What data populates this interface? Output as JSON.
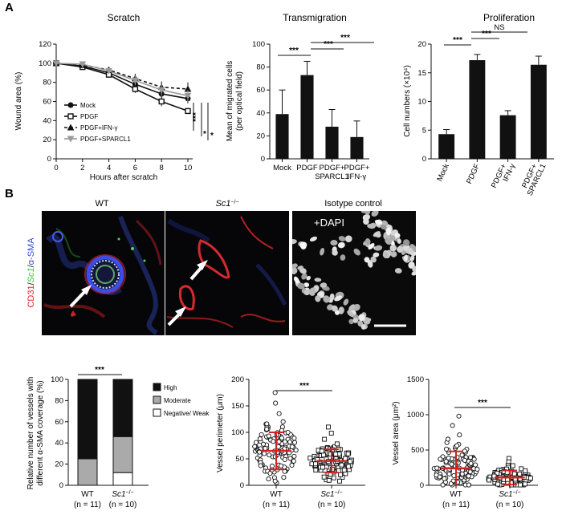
{
  "figure": {
    "panel_a": "A",
    "panel_b": "B",
    "micro_titles": [
      "WT",
      "Sc1",
      "Isotype control"
    ],
    "micro_title_sup": "−/−",
    "stain_label": {
      "cd31": "CD31",
      "sep1": "/",
      "sc1": "Sc1",
      "sep2": "/",
      "asma": "α-SMA"
    },
    "dapi_label": "+DAPI",
    "colors": {
      "cd31": "#e0262a",
      "sc1": "#32c83a",
      "asma": "#3245e6",
      "bar_black": "#111111",
      "bar_gray": "#aaaaaa",
      "error_red": "#d42020"
    }
  },
  "chart_data": [
    {
      "type": "line",
      "title": "Scratch",
      "xlabel": "Hours after scratch",
      "ylabel": "Wound area (%)",
      "xlim": [
        0,
        10
      ],
      "ylim": [
        0,
        120
      ],
      "xticks": [
        0,
        2,
        4,
        6,
        8,
        10
      ],
      "yticks": [
        0,
        20,
        40,
        60,
        80,
        100,
        120
      ],
      "x": [
        0,
        2,
        4,
        6,
        8,
        10
      ],
      "series": [
        {
          "name": "Mock",
          "values": [
            100,
            97,
            90,
            78,
            68,
            63
          ],
          "errors": [
            1,
            2,
            3,
            4,
            5,
            5
          ]
        },
        {
          "name": "PDGF",
          "values": [
            100,
            96,
            88,
            73,
            60,
            50
          ],
          "errors": [
            1,
            2,
            3,
            4,
            5,
            3
          ]
        },
        {
          "name": "PDGF+IFN-γ",
          "values": [
            100,
            98,
            93,
            84,
            75,
            73
          ],
          "errors": [
            1,
            2,
            3,
            5,
            6,
            7
          ]
        },
        {
          "name": "PDGF+SPARCL1",
          "values": [
            100,
            99,
            92,
            82,
            72,
            66
          ],
          "errors": [
            1,
            2,
            3,
            5,
            6,
            6
          ]
        }
      ],
      "legend_position": "bottom-left",
      "significance": [
        "***",
        "*",
        "*"
      ]
    },
    {
      "type": "bar",
      "title": "Transmigration",
      "ylabel": "Mean of migrated cells (per optical field)",
      "ylim": [
        0,
        100
      ],
      "yticks": [
        0,
        20,
        40,
        60,
        80,
        100
      ],
      "categories": [
        "Mock",
        "PDGF",
        "PDGF+ SPARCL1",
        "PDGF+ IFN-γ"
      ],
      "values": [
        39,
        73,
        28,
        19
      ],
      "errors": [
        21,
        12,
        15,
        14
      ],
      "significance": [
        "***",
        "***",
        "***"
      ]
    },
    {
      "type": "bar",
      "title": "Proliferation",
      "ylabel": "Cell numbers (×10⁴)",
      "ylim": [
        0,
        20
      ],
      "yticks": [
        0,
        5,
        10,
        15,
        20
      ],
      "categories": [
        "Mock",
        "PDGF",
        "PDGF+ IFN-γ",
        "PDGF+ SPARCL1"
      ],
      "values": [
        4.3,
        17.2,
        7.6,
        16.4
      ],
      "errors": [
        0.8,
        1.0,
        0.8,
        1.5
      ],
      "significance": [
        "***",
        "***",
        "NS"
      ]
    },
    {
      "type": "bar",
      "stacked": true,
      "ylabel": "Relative number of vessels with different α-SMA coverage (%)",
      "ylim": [
        0,
        100
      ],
      "yticks": [
        0,
        20,
        40,
        60,
        80,
        100
      ],
      "categories": [
        "WT",
        "Sc1−/−"
      ],
      "category_n": [
        "(n = 11)",
        "(n = 10)"
      ],
      "series": [
        {
          "name": "Negative/ Weak",
          "values": [
            0,
            12
          ],
          "color": "#ffffff"
        },
        {
          "name": "Moderate",
          "values": [
            25,
            34
          ],
          "color": "#aaaaaa"
        },
        {
          "name": "High",
          "values": [
            75,
            54
          ],
          "color": "#111111"
        }
      ],
      "legend_position": "right",
      "significance": [
        "***"
      ]
    },
    {
      "type": "scatter",
      "ylabel": "Vessel perimeter (μm)",
      "ylim": [
        0,
        200
      ],
      "yticks": [
        0,
        50,
        100,
        150,
        200
      ],
      "categories": [
        "WT",
        "Sc1−/−"
      ],
      "category_n": [
        "(n = 11)",
        "(n = 10)"
      ],
      "markers": [
        "circle",
        "square"
      ],
      "means": [
        65,
        46
      ],
      "sd": [
        35,
        22
      ],
      "point_range": [
        [
          5,
          175
        ],
        [
          5,
          110
        ]
      ],
      "significance": [
        "***"
      ]
    },
    {
      "type": "scatter",
      "ylabel": "Vessel area (μm²)",
      "ylim": [
        0,
        1500
      ],
      "yticks": [
        0,
        500,
        1000,
        1500
      ],
      "categories": [
        "WT",
        "Sc1−/−"
      ],
      "category_n": [
        "(n = 11)",
        "(n = 10)"
      ],
      "markers": [
        "circle",
        "square"
      ],
      "means": [
        240,
        110
      ],
      "sd": [
        240,
        100
      ],
      "point_range": [
        [
          5,
          980
        ],
        [
          5,
          380
        ]
      ],
      "significance": [
        "***"
      ]
    }
  ]
}
